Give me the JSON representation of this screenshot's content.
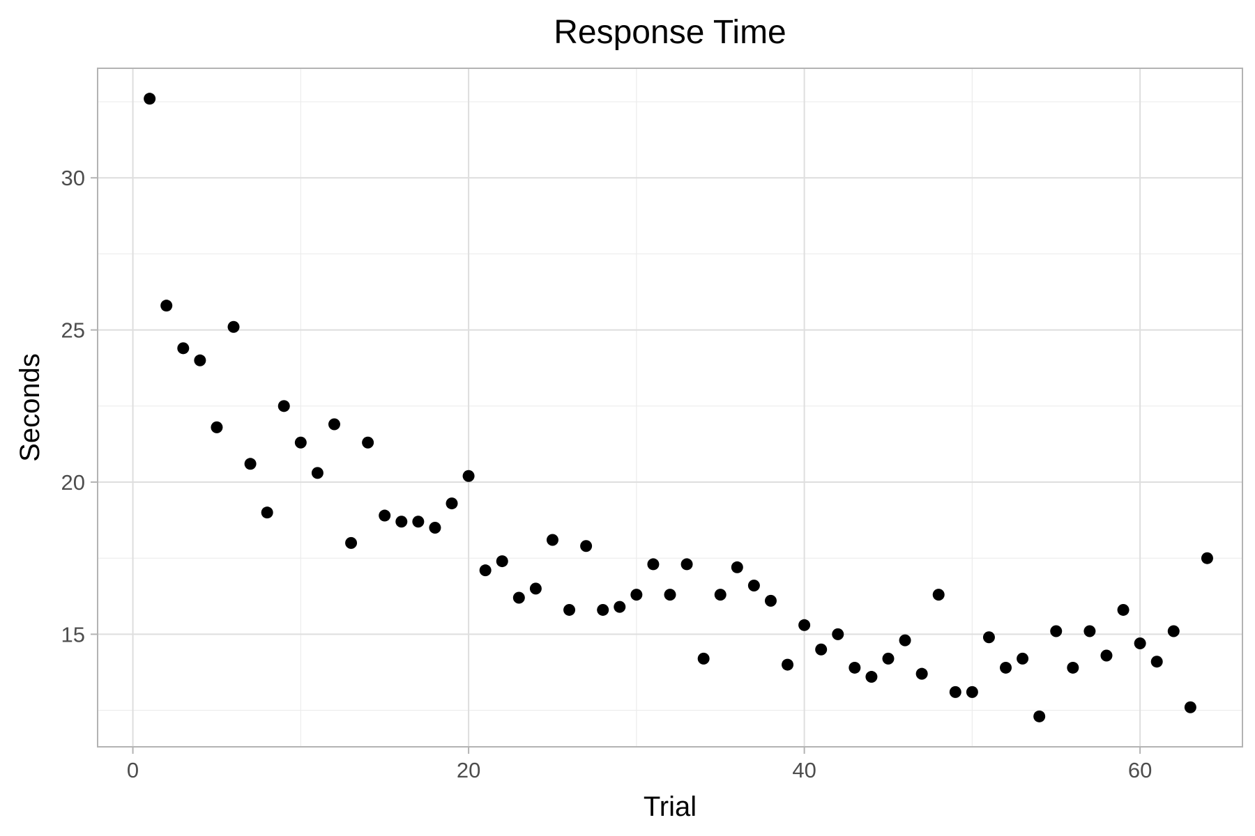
{
  "chart_data": {
    "type": "scatter",
    "title": "Response Time",
    "xlabel": "Trial",
    "ylabel": "Seconds",
    "xlim": [
      -2.1,
      66.1
    ],
    "ylim": [
      11.3,
      33.6
    ],
    "x_ticks": [
      0,
      20,
      40,
      60
    ],
    "y_ticks": [
      15,
      20,
      25,
      30
    ],
    "grid": true,
    "legend": "none",
    "point_color": "#000000",
    "series": [
      {
        "x": [
          1,
          2,
          3,
          4,
          5,
          6,
          7,
          8,
          9,
          10,
          11,
          12,
          13,
          14,
          15,
          16,
          17,
          18,
          19,
          20,
          21,
          22,
          23,
          24,
          25,
          26,
          27,
          28,
          29,
          30,
          31,
          32,
          33,
          34,
          35,
          36,
          37,
          38,
          39,
          40,
          41,
          42,
          43,
          44,
          45,
          46,
          47,
          48,
          49,
          50,
          51,
          52,
          53,
          54,
          55,
          56,
          57,
          58,
          59,
          60,
          61,
          62,
          63,
          64
        ],
        "y": [
          32.6,
          25.8,
          24.4,
          24.0,
          21.8,
          25.1,
          20.6,
          19.0,
          22.5,
          21.3,
          20.3,
          21.9,
          18.0,
          21.3,
          18.9,
          18.7,
          18.7,
          18.5,
          19.3,
          20.2,
          17.1,
          17.4,
          16.2,
          16.5,
          18.1,
          15.8,
          17.9,
          15.8,
          15.9,
          16.3,
          17.3,
          16.3,
          17.3,
          14.2,
          16.3,
          17.2,
          16.6,
          16.1,
          14.0,
          15.3,
          14.5,
          15.0,
          13.9,
          13.6,
          14.2,
          14.8,
          13.7,
          16.3,
          13.1,
          13.1,
          14.9,
          13.9,
          14.2,
          12.3,
          15.1,
          13.9,
          15.1,
          14.3,
          15.8,
          14.7,
          14.1,
          15.1,
          12.6,
          17.5
        ]
      }
    ]
  }
}
